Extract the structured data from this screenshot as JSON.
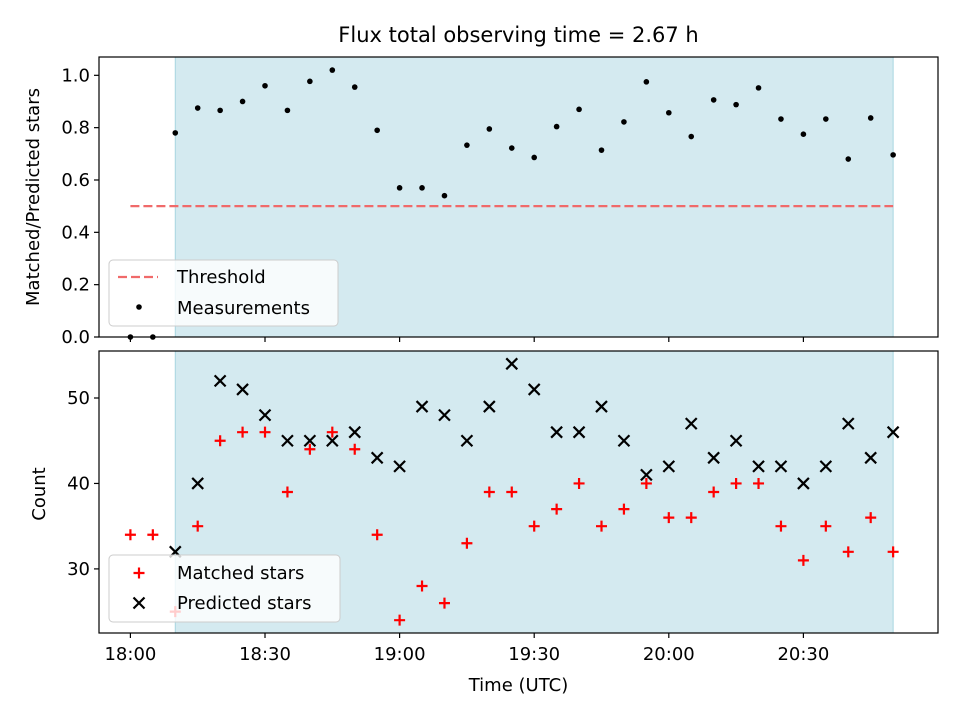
{
  "chart_data": [
    {
      "type": "scatter",
      "title": "Flux total observing time = 2.67 h",
      "xlabel": "",
      "ylabel": "Matched/Predicted stars",
      "ylim": [
        0.0,
        1.07
      ],
      "xlim": [
        "17:53",
        "21:00"
      ],
      "y_ticks": [
        "0.0",
        "0.2",
        "0.4",
        "0.6",
        "0.8",
        "1.0"
      ],
      "shaded_interval": [
        "18:10",
        "20:50"
      ],
      "shade_color": "#d4eaf0",
      "legend_position": "lower-left",
      "legend": {
        "threshold": "Threshold",
        "measurements": "Measurements"
      },
      "threshold": {
        "name": "Threshold",
        "y": 0.5,
        "x_start": "18:00",
        "x_end": "20:50",
        "color": "#f06a6a"
      },
      "series": [
        {
          "name": "Measurements",
          "color": "#000000",
          "x": [
            "18:00",
            "18:05",
            "18:10",
            "18:15",
            "18:20",
            "18:25",
            "18:30",
            "18:35",
            "18:40",
            "18:45",
            "18:50",
            "18:55",
            "19:00",
            "19:05",
            "19:10",
            "19:15",
            "19:20",
            "19:25",
            "19:30",
            "19:35",
            "19:40",
            "19:45",
            "19:50",
            "19:55",
            "20:00",
            "20:05",
            "20:10",
            "20:15",
            "20:20",
            "20:25",
            "20:30",
            "20:35",
            "20:40",
            "20:45",
            "20:50"
          ],
          "y": [
            0.0,
            0.0,
            0.78,
            0.875,
            0.866,
            0.9,
            0.96,
            0.866,
            0.977,
            1.02,
            0.955,
            0.79,
            0.57,
            0.57,
            0.54,
            0.733,
            0.795,
            0.722,
            0.686,
            0.804,
            0.87,
            0.714,
            0.822,
            0.975,
            0.857,
            0.766,
            0.906,
            0.888,
            0.952,
            0.833,
            0.775,
            0.833,
            0.68,
            0.837,
            0.696
          ]
        }
      ]
    },
    {
      "type": "scatter",
      "title": "",
      "xlabel": "Time (UTC)",
      "ylabel": "Count",
      "ylim": [
        22.5,
        55.5
      ],
      "xlim": [
        "17:53",
        "21:00"
      ],
      "x_ticks": [
        "18:00",
        "18:30",
        "19:00",
        "19:30",
        "20:00",
        "20:30"
      ],
      "y_ticks": [
        "30",
        "40",
        "50"
      ],
      "shaded_interval": [
        "18:10",
        "20:50"
      ],
      "shade_color": "#d4eaf0",
      "legend_position": "lower-left",
      "legend": {
        "matched": "Matched stars",
        "predicted": "Predicted stars"
      },
      "series": [
        {
          "name": "Matched stars",
          "marker": "plus",
          "color": "#ff0000",
          "x": [
            "18:00",
            "18:05",
            "18:10",
            "18:15",
            "18:20",
            "18:25",
            "18:30",
            "18:35",
            "18:40",
            "18:45",
            "18:50",
            "18:55",
            "19:00",
            "19:05",
            "19:10",
            "19:15",
            "19:20",
            "19:25",
            "19:30",
            "19:35",
            "19:40",
            "19:45",
            "19:50",
            "19:55",
            "20:00",
            "20:05",
            "20:10",
            "20:15",
            "20:20",
            "20:25",
            "20:30",
            "20:35",
            "20:40",
            "20:45",
            "20:50"
          ],
          "y": [
            34,
            34,
            25,
            35,
            45,
            46,
            46,
            39,
            44,
            46,
            44,
            34,
            24,
            28,
            26,
            33,
            39,
            39,
            35,
            37,
            40,
            35,
            37,
            40,
            36,
            36,
            39,
            40,
            40,
            35,
            31,
            35,
            32,
            36,
            32
          ]
        },
        {
          "name": "Predicted stars",
          "marker": "x",
          "color": "#000000",
          "x": [
            "18:10",
            "18:15",
            "18:20",
            "18:25",
            "18:30",
            "18:35",
            "18:40",
            "18:45",
            "18:50",
            "18:55",
            "19:00",
            "19:05",
            "19:10",
            "19:15",
            "19:20",
            "19:25",
            "19:30",
            "19:35",
            "19:40",
            "19:45",
            "19:50",
            "19:55",
            "20:00",
            "20:05",
            "20:10",
            "20:15",
            "20:20",
            "20:25",
            "20:30",
            "20:35",
            "20:40",
            "20:45",
            "20:50"
          ],
          "y": [
            32,
            40,
            52,
            51,
            48,
            45,
            45,
            45,
            46,
            43,
            42,
            49,
            48,
            45,
            49,
            54,
            51,
            46,
            46,
            49,
            45,
            41,
            42,
            47,
            43,
            45,
            42,
            42,
            40,
            42,
            47,
            43,
            46
          ]
        }
      ]
    }
  ]
}
